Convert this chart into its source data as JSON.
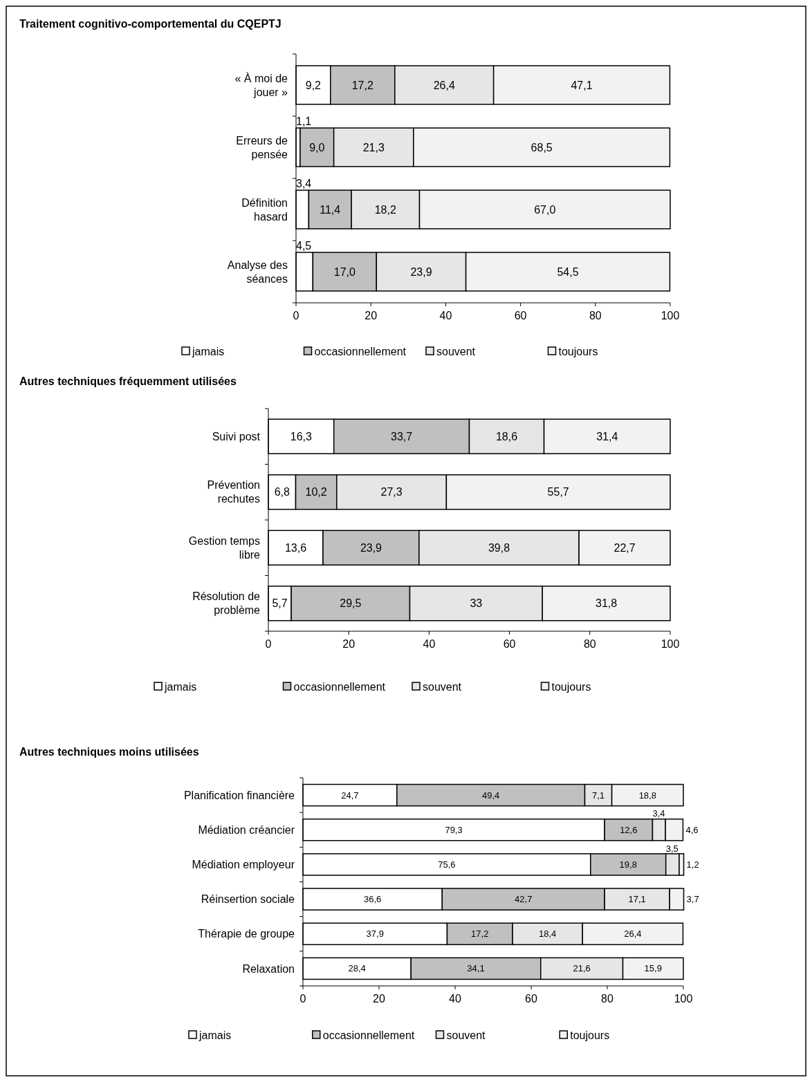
{
  "chart_data": [
    {
      "type": "bar",
      "orientation": "horizontal",
      "stacked": true,
      "title": "Traitement cognitivo-comportemental du CQEPTJ",
      "categories": [
        "« À moi de jouer »",
        "Erreurs de pensée",
        "Définition hasard",
        "Analyse des séances"
      ],
      "xlim": [
        0,
        100
      ],
      "xticks": [
        0,
        20,
        40,
        60,
        80,
        100
      ],
      "legend": "bottom",
      "series": [
        {
          "name": "jamais",
          "color": "#ffffff",
          "values": [
            9.2,
            1.1,
            3.4,
            4.5
          ],
          "value_labels": [
            "9,2",
            "1,1",
            "3,4",
            "4,5"
          ]
        },
        {
          "name": "occasionnellement",
          "color": "#c0c0c0",
          "values": [
            17.2,
            9.0,
            11.4,
            17.0
          ],
          "value_labels": [
            "17,2",
            "9,0",
            "11,4",
            "17,0"
          ]
        },
        {
          "name": "souvent",
          "color": "#e6e6e6",
          "values": [
            26.4,
            21.3,
            18.2,
            23.9
          ],
          "value_labels": [
            "26,4",
            "21,3",
            "18,2",
            "23,9"
          ]
        },
        {
          "name": "toujours",
          "color": "#f2f2f2",
          "values": [
            47.1,
            68.5,
            67.0,
            54.5
          ],
          "value_labels": [
            "47,1",
            "68,5",
            "67,0",
            "54,5"
          ]
        }
      ]
    },
    {
      "type": "bar",
      "orientation": "horizontal",
      "stacked": true,
      "title": "Autres techniques fréquemment utilisées",
      "categories": [
        "Suivi post",
        "Prévention rechutes",
        "Gestion temps libre",
        "Résolution de problème"
      ],
      "xlim": [
        0,
        100
      ],
      "xticks": [
        0,
        20,
        40,
        60,
        80,
        100
      ],
      "legend": "bottom",
      "series": [
        {
          "name": "jamais",
          "color": "#ffffff",
          "values": [
            16.3,
            6.8,
            13.6,
            5.7
          ],
          "value_labels": [
            "16,3",
            "6,8",
            "13,6",
            "5,7"
          ]
        },
        {
          "name": "occasionnellement",
          "color": "#c0c0c0",
          "values": [
            33.7,
            10.2,
            23.9,
            29.5
          ],
          "value_labels": [
            "33,7",
            "10,2",
            "23,9",
            "29,5"
          ]
        },
        {
          "name": "souvent",
          "color": "#e6e6e6",
          "values": [
            18.6,
            27.3,
            39.8,
            33
          ],
          "value_labels": [
            "18,6",
            "27,3",
            "39,8",
            "33"
          ]
        },
        {
          "name": "toujours",
          "color": "#f2f2f2",
          "values": [
            31.4,
            55.7,
            22.7,
            31.8
          ],
          "value_labels": [
            "31,4",
            "55,7",
            "22,7",
            "31,8"
          ]
        }
      ]
    },
    {
      "type": "bar",
      "orientation": "horizontal",
      "stacked": true,
      "title": "Autres techniques moins utilisées",
      "categories": [
        "Planification financière",
        "Médiation créancier",
        "Médiation employeur",
        "Réinsertion sociale",
        "Thérapie de groupe",
        "Relaxation"
      ],
      "xlim": [
        0,
        100
      ],
      "xticks": [
        0,
        20,
        40,
        60,
        80,
        100
      ],
      "legend": "bottom",
      "series": [
        {
          "name": "jamais",
          "color": "#ffffff",
          "values": [
            24.7,
            79.3,
            75.6,
            36.6,
            37.9,
            28.4
          ],
          "value_labels": [
            "24,7",
            "79,3",
            "75,6",
            "36,6",
            "37,9",
            "28,4"
          ]
        },
        {
          "name": "occasionnellement",
          "color": "#c0c0c0",
          "values": [
            49.4,
            12.6,
            19.8,
            42.7,
            17.2,
            34.1
          ],
          "value_labels": [
            "49,4",
            "12,6",
            "19,8",
            "42,7",
            "17,2",
            "34,1"
          ]
        },
        {
          "name": "souvent",
          "color": "#e6e6e6",
          "values": [
            7.1,
            3.4,
            3.5,
            17.1,
            18.4,
            21.6
          ],
          "value_labels": [
            "7,1",
            "3,4",
            "3,5",
            "17,1",
            "18,4",
            "21,6"
          ]
        },
        {
          "name": "toujours",
          "color": "#f2f2f2",
          "values": [
            18.8,
            4.6,
            1.2,
            3.7,
            26.4,
            15.9
          ],
          "value_labels": [
            "18,8",
            "4,6",
            "1,2",
            "3,7",
            "26,4",
            "15,9"
          ]
        }
      ]
    }
  ]
}
